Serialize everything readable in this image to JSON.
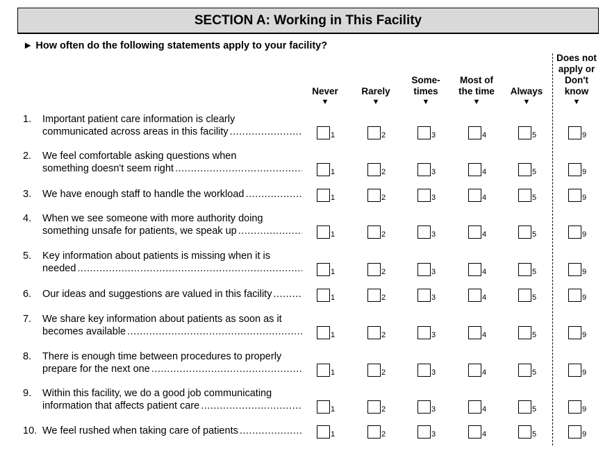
{
  "section_title": "SECTION A: Working in This Facility",
  "question": "How often do the following statements apply to your facility?",
  "columns": [
    {
      "label": "Never",
      "value": "1"
    },
    {
      "label": "Rarely",
      "value": "2"
    },
    {
      "label": "Some-\ntimes",
      "value": "3"
    },
    {
      "label": "Most of\nthe time",
      "value": "4"
    },
    {
      "label": "Always",
      "value": "5"
    },
    {
      "label": "Does not\napply or\nDon't\nknow",
      "value": "9"
    }
  ],
  "items": [
    {
      "number": "1.",
      "lines": [
        "Important patient care information is clearly",
        "communicated across areas in this facility"
      ]
    },
    {
      "number": "2.",
      "lines": [
        "We feel comfortable asking questions when",
        "something doesn't seem right"
      ]
    },
    {
      "number": "3.",
      "lines": [
        "We have enough staff to handle the workload"
      ]
    },
    {
      "number": "4.",
      "lines": [
        "When we see someone with more authority doing",
        "something unsafe for patients, we speak up"
      ]
    },
    {
      "number": "5.",
      "lines": [
        "Key information about patients is missing when it is",
        "needed"
      ]
    },
    {
      "number": "6.",
      "lines": [
        "Our ideas and suggestions are valued in this facility"
      ]
    },
    {
      "number": "7.",
      "lines": [
        "We share key information about patients as soon as it",
        "becomes available"
      ]
    },
    {
      "number": "8.",
      "lines": [
        "There is enough time between procedures to properly",
        "prepare for the next one"
      ]
    },
    {
      "number": "9.",
      "lines": [
        "Within this facility, we do a good job communicating",
        "information that affects patient care"
      ]
    },
    {
      "number": "10.",
      "lines": [
        "We feel rushed when taking care of patients"
      ]
    }
  ]
}
